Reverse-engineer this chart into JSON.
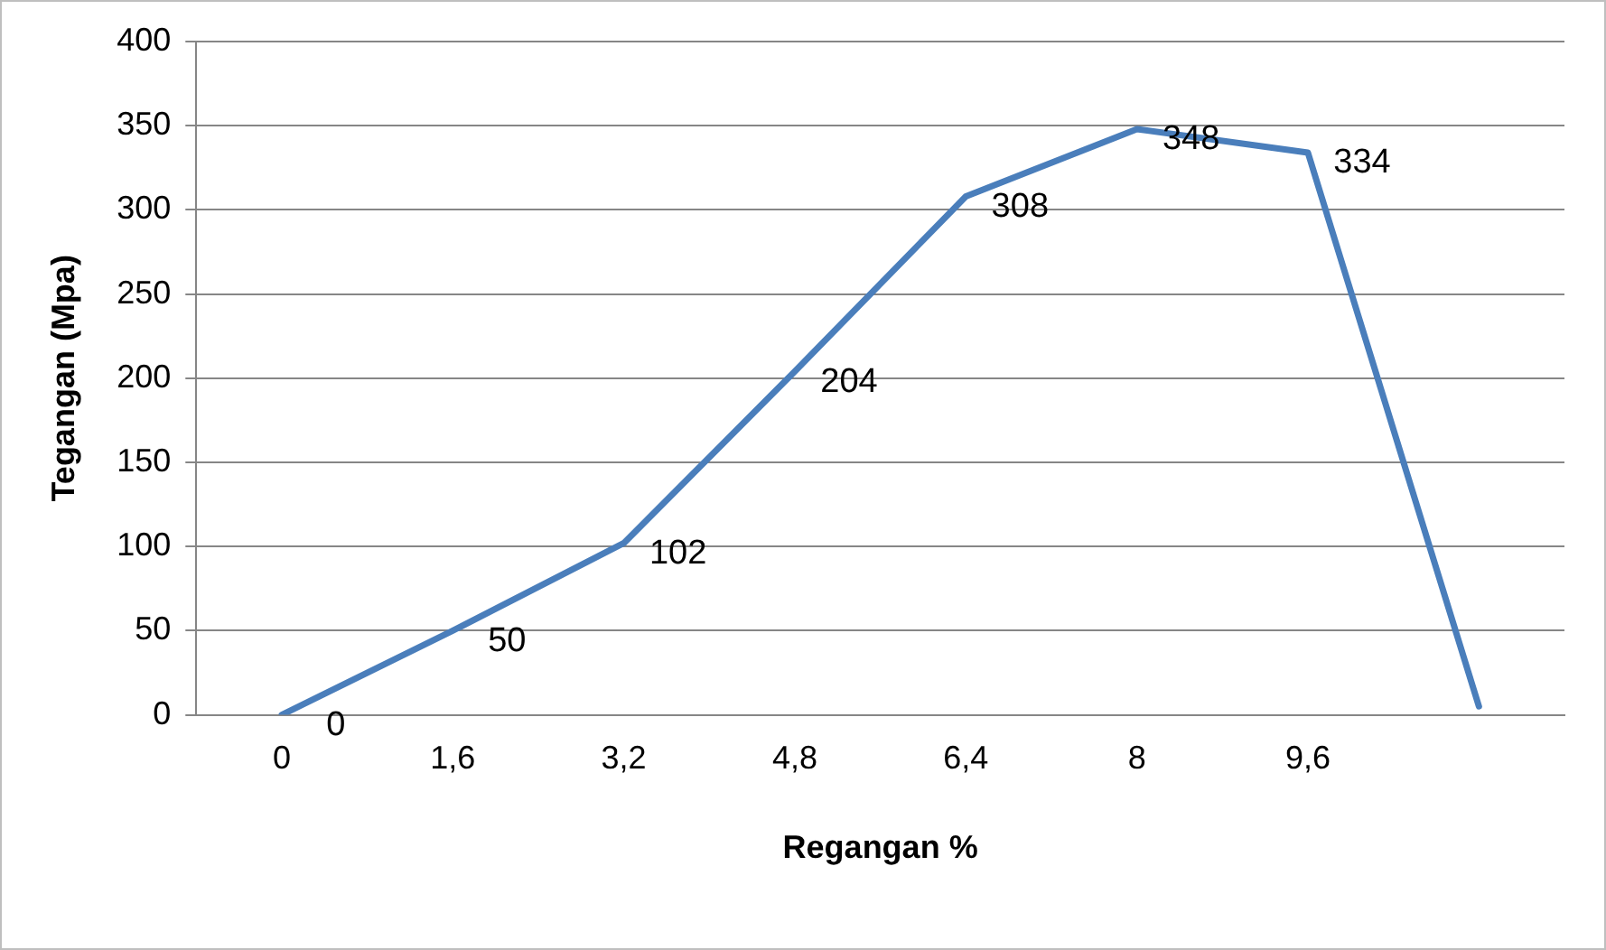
{
  "chart_data": {
    "type": "line",
    "xlabel": "Regangan %",
    "ylabel": "Tegangan (Mpa)",
    "categories": [
      "0",
      "1,6",
      "3,2",
      "4,8",
      "6,4",
      "8",
      "9,6",
      null
    ],
    "series": [
      {
        "color": "#4a7ebb",
        "values": [
          0,
          50,
          102,
          204,
          308,
          348,
          334,
          5
        ],
        "value_labels": [
          "0",
          "50",
          "102",
          "204",
          "308",
          "348",
          "334",
          null
        ]
      }
    ],
    "ylim": [
      0,
      400
    ],
    "yticks": [
      0,
      50,
      100,
      150,
      200,
      250,
      300,
      350,
      400
    ],
    "grid": "y",
    "legend": false,
    "marker": "none",
    "line_style": "solid"
  }
}
